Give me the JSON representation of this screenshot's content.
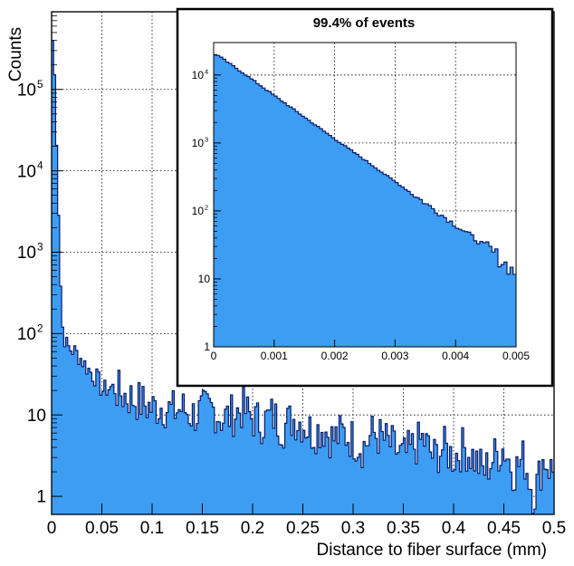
{
  "chart_data": [
    {
      "type": "bar",
      "xlabel": "Distance to fiber surface (mm)",
      "ylabel": "Counts",
      "xlim": [
        0,
        0.5
      ],
      "ylog": true,
      "ylim": [
        0.6,
        900000
      ],
      "grid": true,
      "fill_color": "#3d9df3",
      "line_color": "#0a1a66",
      "x_ticks": [
        {
          "value": 0,
          "label": "0"
        },
        {
          "value": 0.05,
          "label": "0.05"
        },
        {
          "value": 0.1,
          "label": "0.1"
        },
        {
          "value": 0.15,
          "label": "0.15"
        },
        {
          "value": 0.2,
          "label": "0.2"
        },
        {
          "value": 0.25,
          "label": "0.25"
        },
        {
          "value": 0.3,
          "label": "0.3"
        },
        {
          "value": 0.35,
          "label": "0.35"
        },
        {
          "value": 0.4,
          "label": "0.4"
        },
        {
          "value": 0.45,
          "label": "0.45"
        },
        {
          "value": 0.5,
          "label": "0.5"
        }
      ],
      "y_ticks": [
        {
          "value": 1,
          "base": "1",
          "exp": ""
        },
        {
          "value": 10,
          "base": "10",
          "exp": ""
        },
        {
          "value": 100,
          "base": "10",
          "exp": "2"
        },
        {
          "value": 1000,
          "base": "10",
          "exp": "3"
        },
        {
          "value": 10000,
          "base": "10",
          "exp": "4"
        },
        {
          "value": 100000,
          "base": "10",
          "exp": "5"
        }
      ],
      "bin_width": 0.002,
      "x": [
        0.002,
        0.006,
        0.01,
        0.014,
        0.018,
        0.022,
        0.026,
        0.03,
        0.034,
        0.038,
        0.042,
        0.046,
        0.05,
        0.06,
        0.07,
        0.08,
        0.09,
        0.1,
        0.11,
        0.12,
        0.13,
        0.14,
        0.15,
        0.16,
        0.17,
        0.18,
        0.19,
        0.2,
        0.21,
        0.22,
        0.23,
        0.24,
        0.25,
        0.26,
        0.27,
        0.28,
        0.29,
        0.3,
        0.31,
        0.32,
        0.33,
        0.34,
        0.35,
        0.36,
        0.37,
        0.38,
        0.39,
        0.4,
        0.41,
        0.42,
        0.43,
        0.44,
        0.45,
        0.46,
        0.47,
        0.48,
        0.49,
        0.498
      ],
      "values": [
        400000,
        8000,
        140,
        75,
        65,
        62,
        55,
        48,
        40,
        35,
        30,
        28,
        20,
        22,
        18,
        16,
        14,
        12,
        13,
        11,
        12,
        10,
        11,
        12,
        9,
        10,
        12,
        9,
        8,
        10,
        7,
        9,
        8,
        6,
        7,
        5,
        6,
        5,
        4,
        6,
        5,
        4,
        3,
        4,
        5,
        3,
        4,
        3,
        4,
        3,
        2,
        3,
        4,
        2,
        3,
        1,
        3,
        2
      ],
      "minor_bins": [
        0.002,
        0.004,
        0.006,
        0.008,
        0.01,
        0.012,
        0.014,
        0.016,
        0.018,
        0.02,
        0.022,
        0.024,
        0.026,
        0.028,
        0.03,
        0.032,
        0.034,
        0.036,
        0.038,
        0.04,
        0.042,
        0.044,
        0.046,
        0.048,
        0.05,
        0.052,
        0.054,
        0.056,
        0.058,
        0.06,
        0.062,
        0.064,
        0.066,
        0.068,
        0.07,
        0.072,
        0.074,
        0.076,
        0.078,
        0.08,
        0.082,
        0.084,
        0.086,
        0.088,
        0.09,
        0.092,
        0.094,
        0.096,
        0.098,
        0.1,
        0.102,
        0.104,
        0.106,
        0.108,
        0.11,
        0.112,
        0.114,
        0.116,
        0.118,
        0.12,
        0.122,
        0.124,
        0.126,
        0.128,
        0.13,
        0.132,
        0.134,
        0.136,
        0.138,
        0.14,
        0.142,
        0.144,
        0.146,
        0.148,
        0.15,
        0.152,
        0.154,
        0.156,
        0.158,
        0.16,
        0.162,
        0.164,
        0.166,
        0.168,
        0.17,
        0.172,
        0.174,
        0.176,
        0.178,
        0.18,
        0.182,
        0.184,
        0.186,
        0.188,
        0.19,
        0.192,
        0.194,
        0.196,
        0.198,
        0.2,
        0.202,
        0.204,
        0.206,
        0.208,
        0.21,
        0.212,
        0.214,
        0.216,
        0.218,
        0.22,
        0.222,
        0.224,
        0.226,
        0.228,
        0.23,
        0.232,
        0.234,
        0.236,
        0.238,
        0.24,
        0.242,
        0.244,
        0.246,
        0.248,
        0.25,
        0.252,
        0.254,
        0.256,
        0.258,
        0.26,
        0.262,
        0.264,
        0.266,
        0.268,
        0.27,
        0.272,
        0.274,
        0.276,
        0.278,
        0.28,
        0.282,
        0.284,
        0.286,
        0.288,
        0.29,
        0.292,
        0.294,
        0.296,
        0.298,
        0.3,
        0.302,
        0.304,
        0.306,
        0.308,
        0.31,
        0.312,
        0.314,
        0.316,
        0.318,
        0.32,
        0.322,
        0.324,
        0.326,
        0.328,
        0.33,
        0.332,
        0.334,
        0.336,
        0.338,
        0.34,
        0.342,
        0.344,
        0.346,
        0.348,
        0.35,
        0.352,
        0.354,
        0.356,
        0.358,
        0.36,
        0.362,
        0.364,
        0.366,
        0.368,
        0.37,
        0.372,
        0.374,
        0.376,
        0.378,
        0.38,
        0.382,
        0.384,
        0.386,
        0.388,
        0.39,
        0.392,
        0.394,
        0.396,
        0.398,
        0.4,
        0.402,
        0.404,
        0.406,
        0.408,
        0.41,
        0.412,
        0.414,
        0.416,
        0.418,
        0.42,
        0.422,
        0.424,
        0.426,
        0.428,
        0.43,
        0.432,
        0.434,
        0.436,
        0.438,
        0.44,
        0.442,
        0.444,
        0.446,
        0.448,
        0.45,
        0.452,
        0.454,
        0.456,
        0.458,
        0.46,
        0.462,
        0.464,
        0.466,
        0.468,
        0.47,
        0.472,
        0.474,
        0.476,
        0.478,
        0.48,
        0.482,
        0.484,
        0.486,
        0.488,
        0.49,
        0.492,
        0.494,
        0.496,
        0.498,
        0.5
      ]
    },
    {
      "type": "bar",
      "title": "99.4% of events",
      "xlim": [
        0,
        0.005
      ],
      "ylog": true,
      "ylim": [
        1,
        30000
      ],
      "grid": true,
      "fill_color": "#3d9df3",
      "line_color": "#0a1a66",
      "x_ticks": [
        {
          "value": 0,
          "label": "0"
        },
        {
          "value": 0.001,
          "label": "0.001"
        },
        {
          "value": 0.002,
          "label": "0.002"
        },
        {
          "value": 0.003,
          "label": "0.003"
        },
        {
          "value": 0.004,
          "label": "0.004"
        },
        {
          "value": 0.005,
          "label": "0.005"
        }
      ],
      "y_ticks": [
        {
          "value": 1,
          "base": "1",
          "exp": ""
        },
        {
          "value": 10,
          "base": "10",
          "exp": ""
        },
        {
          "value": 100,
          "base": "10",
          "exp": "2"
        },
        {
          "value": 1000,
          "base": "10",
          "exp": "3"
        },
        {
          "value": 10000,
          "base": "10",
          "exp": "4"
        }
      ],
      "bin_width": 5e-05,
      "x": [
        5e-05,
        0.0005,
        0.001,
        0.0015,
        0.002,
        0.0025,
        0.003,
        0.0035,
        0.004,
        0.0045,
        0.005
      ],
      "values": [
        20000,
        10500,
        5000,
        2400,
        1150,
        560,
        270,
        130,
        62,
        30,
        12
      ]
    }
  ]
}
